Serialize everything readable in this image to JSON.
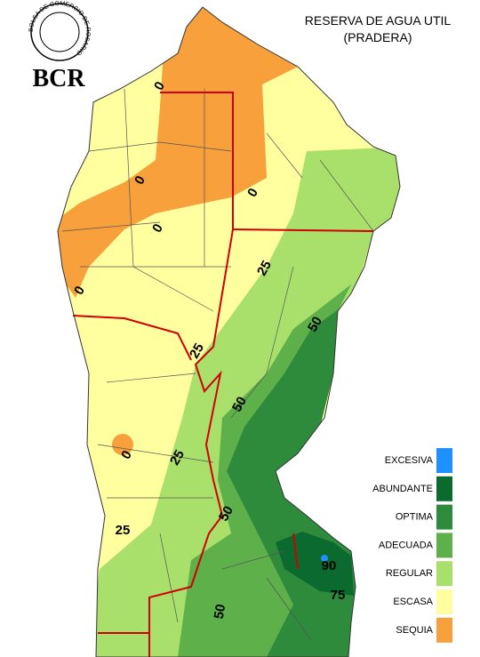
{
  "logo": {
    "ring_text": "BOLSA DE COMERCIO DE ROSARIO",
    "wordmark": "BCR"
  },
  "title": [
    "RESERVA DE AGUA UTIL",
    "(PRADERA)"
  ],
  "contour_labels": [
    "0",
    "0",
    "0",
    "0",
    "0",
    "25",
    "50",
    "25",
    "50",
    "0",
    "25",
    "25",
    "50",
    "90",
    "75",
    "50"
  ],
  "legend": [
    {
      "label": "EXCESIVA",
      "color": "#1e90ff"
    },
    {
      "label": "ABUNDANTE",
      "color": "#0b6b2e"
    },
    {
      "label": "OPTIMA",
      "color": "#2e8b3c"
    },
    {
      "label": "ADECUADA",
      "color": "#5db04a"
    },
    {
      "label": "REGULAR",
      "color": "#a9e06c"
    },
    {
      "label": "ESCASA",
      "color": "#ffffa0"
    },
    {
      "label": "SEQUIA",
      "color": "#f7a03c"
    }
  ]
}
